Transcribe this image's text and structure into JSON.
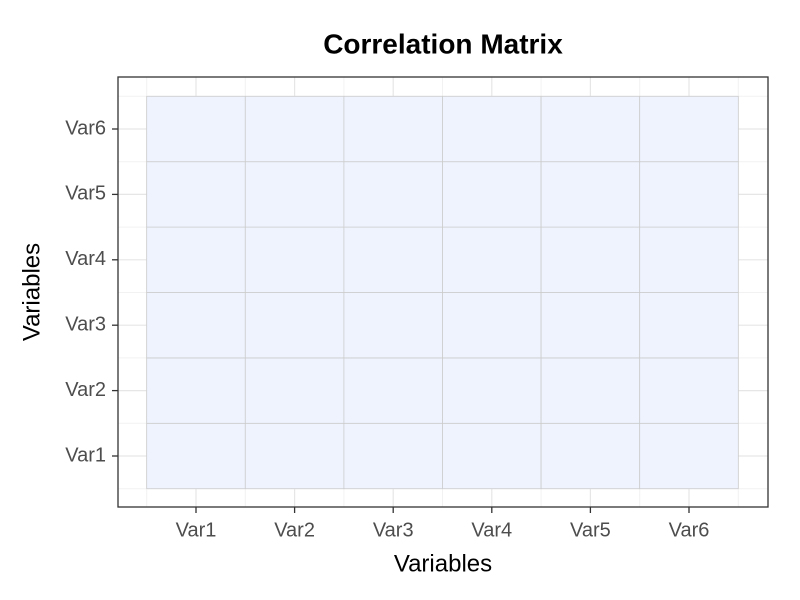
{
  "chart_data": {
    "type": "heatmap",
    "title": "Correlation Matrix",
    "x_label": "Variables",
    "y_label": "Variables",
    "x_categories": [
      "Var1",
      "Var2",
      "Var3",
      "Var4",
      "Var5",
      "Var6"
    ],
    "y_categories": [
      "Var1",
      "Var2",
      "Var3",
      "Var4",
      "Var5",
      "Var6"
    ],
    "values": [
      [
        0,
        0,
        0,
        0,
        0,
        0
      ],
      [
        0,
        0,
        0,
        0,
        0,
        0
      ],
      [
        0,
        0,
        0,
        0,
        0,
        0
      ],
      [
        0,
        0,
        0,
        0,
        0,
        0
      ],
      [
        0,
        0,
        0,
        0,
        0,
        0
      ],
      [
        0,
        0,
        0,
        0,
        0,
        0
      ]
    ],
    "color": "#eef3fe",
    "grid": true
  }
}
